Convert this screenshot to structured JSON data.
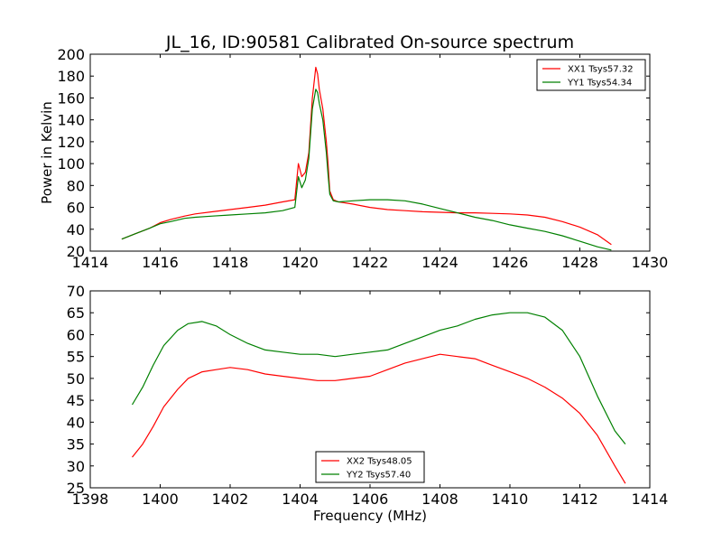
{
  "figure": {
    "title": "JL_16, ID:90581 Calibrated On-source spectrum",
    "ylabel": "Power in Kelvin",
    "xlabel": "Frequency (MHz)"
  },
  "chart_data": [
    {
      "type": "line",
      "title": "JL_16, ID:90581 Calibrated On-source spectrum",
      "xlabel": "",
      "ylabel": "Power in Kelvin",
      "xlim": [
        1414,
        1430
      ],
      "ylim": [
        20,
        200
      ],
      "xticks": [
        1414,
        1416,
        1418,
        1420,
        1422,
        1424,
        1426,
        1428,
        1430
      ],
      "yticks": [
        20,
        40,
        60,
        80,
        100,
        120,
        140,
        160,
        180,
        200
      ],
      "grid": false,
      "legend": "top-right",
      "series": [
        {
          "name": "XX1 Tsys57.32",
          "color": "#ff0000",
          "x": [
            1414.9,
            1415.3,
            1415.7,
            1416.0,
            1416.3,
            1416.7,
            1417.0,
            1417.5,
            1418.0,
            1418.5,
            1419.0,
            1419.5,
            1419.85,
            1419.95,
            1420.05,
            1420.15,
            1420.25,
            1420.35,
            1420.45,
            1420.5,
            1420.55,
            1420.65,
            1420.75,
            1420.8,
            1420.85,
            1420.95,
            1421.1,
            1421.5,
            1422.0,
            1422.5,
            1423.0,
            1423.5,
            1424.0,
            1424.5,
            1425.0,
            1425.5,
            1426.0,
            1426.5,
            1427.0,
            1427.5,
            1428.0,
            1428.5,
            1428.9
          ],
          "y": [
            31,
            36,
            41,
            46,
            49,
            52,
            54,
            56,
            58,
            60,
            62,
            65,
            67,
            100,
            88,
            92,
            110,
            160,
            188,
            182,
            168,
            150,
            120,
            100,
            75,
            67,
            65,
            63,
            60,
            58,
            57,
            56,
            55.5,
            55,
            55,
            54.5,
            54,
            53,
            51,
            47,
            42,
            35,
            26
          ]
        },
        {
          "name": "YY1 Tsys54.34",
          "color": "#008000",
          "x": [
            1414.9,
            1415.3,
            1415.7,
            1416.0,
            1416.3,
            1416.7,
            1417.0,
            1417.5,
            1418.0,
            1418.5,
            1419.0,
            1419.5,
            1419.85,
            1419.95,
            1420.05,
            1420.15,
            1420.25,
            1420.35,
            1420.45,
            1420.5,
            1420.55,
            1420.65,
            1420.75,
            1420.8,
            1420.85,
            1420.95,
            1421.1,
            1421.5,
            1422.0,
            1422.5,
            1423.0,
            1423.5,
            1424.0,
            1424.5,
            1425.0,
            1425.5,
            1426.0,
            1426.5,
            1427.0,
            1427.5,
            1428.0,
            1428.5,
            1428.9
          ],
          "y": [
            31,
            36,
            41,
            45,
            47,
            50,
            51,
            52,
            53,
            54,
            55,
            57,
            60,
            88,
            78,
            85,
            105,
            150,
            168,
            165,
            155,
            140,
            110,
            90,
            72,
            66,
            65,
            66,
            67,
            67,
            66,
            63,
            59,
            55,
            51,
            48,
            44,
            41,
            38,
            34,
            29,
            24,
            21
          ]
        }
      ]
    },
    {
      "type": "line",
      "title": "",
      "xlabel": "Frequency (MHz)",
      "ylabel": "",
      "xlim": [
        1398,
        1414
      ],
      "ylim": [
        25,
        70
      ],
      "xticks": [
        1398,
        1400,
        1402,
        1404,
        1406,
        1408,
        1410,
        1412,
        1414
      ],
      "yticks": [
        25,
        30,
        35,
        40,
        45,
        50,
        55,
        60,
        65,
        70
      ],
      "grid": false,
      "legend": "bottom-center",
      "series": [
        {
          "name": "XX2 Tsys48.05",
          "color": "#ff0000",
          "x": [
            1399.2,
            1399.5,
            1399.8,
            1400.1,
            1400.5,
            1400.8,
            1401.2,
            1401.6,
            1402.0,
            1402.5,
            1403.0,
            1403.5,
            1404.0,
            1404.5,
            1405.0,
            1405.5,
            1406.0,
            1406.5,
            1407.0,
            1407.5,
            1408.0,
            1408.5,
            1409.0,
            1409.5,
            1410.0,
            1410.5,
            1411.0,
            1411.5,
            1412.0,
            1412.5,
            1413.0,
            1413.3
          ],
          "y": [
            32,
            35,
            39,
            43.5,
            47.5,
            50,
            51.5,
            52,
            52.5,
            52,
            51,
            50.5,
            50,
            49.5,
            49.5,
            50,
            50.5,
            52,
            53.5,
            54.5,
            55.5,
            55,
            54.5,
            53,
            51.5,
            50,
            48,
            45.5,
            42,
            37,
            30,
            26
          ]
        },
        {
          "name": "YY2 Tsys57.40",
          "color": "#008000",
          "x": [
            1399.2,
            1399.5,
            1399.8,
            1400.1,
            1400.5,
            1400.8,
            1401.2,
            1401.6,
            1402.0,
            1402.5,
            1403.0,
            1403.5,
            1404.0,
            1404.5,
            1405.0,
            1405.5,
            1406.0,
            1406.5,
            1407.0,
            1407.5,
            1408.0,
            1408.5,
            1409.0,
            1409.5,
            1410.0,
            1410.5,
            1411.0,
            1411.5,
            1412.0,
            1412.5,
            1413.0,
            1413.3
          ],
          "y": [
            44,
            48,
            53,
            57.5,
            61,
            62.5,
            63,
            62,
            60,
            58,
            56.5,
            56,
            55.5,
            55.5,
            55,
            55.5,
            56,
            56.5,
            58,
            59.5,
            61,
            62,
            63.5,
            64.5,
            65,
            65,
            64,
            61,
            55,
            46,
            38,
            35
          ]
        }
      ]
    }
  ]
}
